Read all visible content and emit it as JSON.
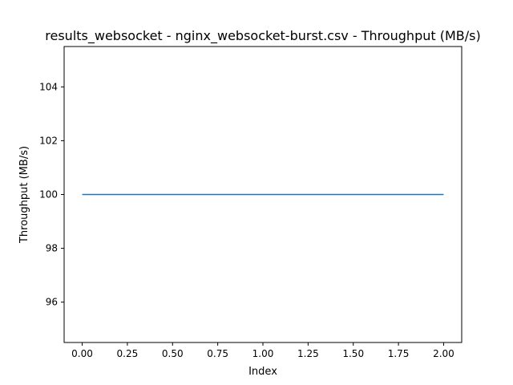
{
  "chart_data": {
    "type": "line",
    "title": "results_websocket - nginx_websocket-burst.csv - Throughput (MB/s)",
    "xlabel": "Index",
    "ylabel": "Throughput (MB/s)",
    "xlim": [
      -0.1,
      2.1
    ],
    "ylim": [
      94.5,
      105.5
    ],
    "x_ticks": [
      0.0,
      0.25,
      0.5,
      0.75,
      1.0,
      1.25,
      1.5,
      1.75,
      2.0
    ],
    "x_tick_labels": [
      "0.00",
      "0.25",
      "0.50",
      "0.75",
      "1.00",
      "1.25",
      "1.50",
      "1.75",
      "2.00"
    ],
    "y_ticks": [
      96,
      98,
      100,
      102,
      104
    ],
    "y_tick_labels": [
      "96",
      "98",
      "100",
      "102",
      "104"
    ],
    "grid": false,
    "series": [
      {
        "x": [
          0,
          1,
          2
        ],
        "values": [
          100,
          100,
          100
        ],
        "color": "#1f77b4"
      }
    ]
  }
}
